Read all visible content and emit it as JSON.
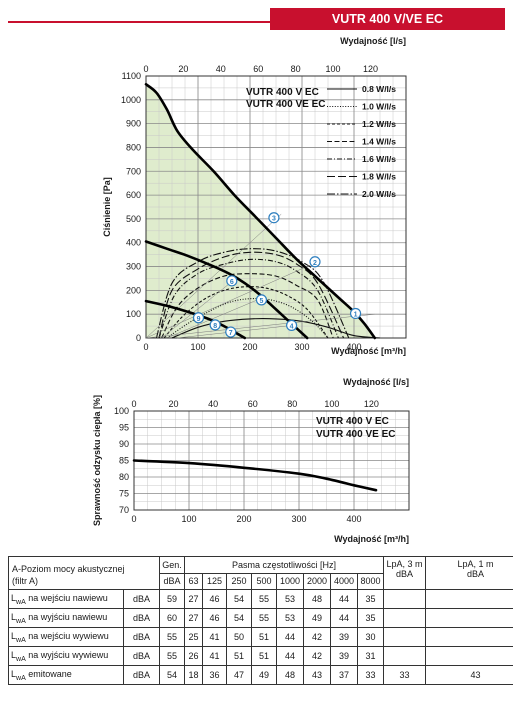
{
  "header": {
    "model": "VUTR 400 V/VE EC"
  },
  "chart_data": [
    {
      "type": "line",
      "x_unit": "m3/h",
      "xlabel": "Wydajność [m³/h]",
      "x2label": "Wydajność [l/s]",
      "ylabel": "Ciśnienie [Pa]",
      "xlim": [
        0,
        500
      ],
      "ylim": [
        0,
        1100
      ],
      "x2lim": [
        0,
        139
      ],
      "xticks": [
        0,
        100,
        200,
        300,
        400
      ],
      "yticks": [
        0,
        100,
        200,
        300,
        400,
        500,
        600,
        700,
        800,
        900,
        1000,
        1100
      ],
      "x2ticks": [
        0,
        20,
        40,
        60,
        80,
        100,
        120
      ],
      "grid": true,
      "model_labels": [
        "VUTR 400 V EC",
        "VUTR 400 VE EC"
      ],
      "fan_curves": [
        {
          "x": [
            0,
            20,
            40,
            60,
            90,
            130,
            170,
            210,
            250,
            290,
            330,
            370,
            400,
            420,
            440
          ],
          "y": [
            1065,
            1030,
            960,
            870,
            790,
            700,
            600,
            510,
            420,
            330,
            250,
            170,
            110,
            60,
            0
          ]
        },
        {
          "x": [
            0,
            40,
            80,
            120,
            160,
            190,
            220,
            250,
            280,
            310
          ],
          "y": [
            405,
            375,
            345,
            310,
            270,
            230,
            180,
            120,
            60,
            0
          ]
        },
        {
          "x": [
            0,
            40,
            80,
            120,
            150,
            170,
            190
          ],
          "y": [
            155,
            135,
            110,
            80,
            50,
            25,
            0
          ]
        }
      ],
      "system_curves": [
        {
          "name": "0.8 W/l/s",
          "style": "solid",
          "x": [
            50,
            100,
            150,
            200,
            250,
            300,
            350,
            400,
            450
          ],
          "y": [
            0,
            45,
            70,
            80,
            80,
            70,
            45,
            10,
            0
          ]
        },
        {
          "name": "1.0 W/l/s",
          "style": "dotted",
          "x": [
            40,
            80,
            120,
            160,
            200,
            240,
            280,
            320,
            350
          ],
          "y": [
            0,
            60,
            110,
            150,
            165,
            160,
            130,
            70,
            0
          ]
        },
        {
          "name": "1.2 W/l/s",
          "style": "short-dash",
          "x": [
            35,
            70,
            110,
            150,
            190,
            230,
            270,
            310,
            350
          ],
          "y": [
            0,
            90,
            160,
            200,
            215,
            210,
            180,
            120,
            0
          ]
        },
        {
          "name": "1.4 W/l/s",
          "style": "dash",
          "x": [
            30,
            60,
            100,
            150,
            200,
            250,
            290,
            330,
            360
          ],
          "y": [
            0,
            130,
            210,
            260,
            270,
            260,
            220,
            160,
            0
          ]
        },
        {
          "name": "1.6 W/l/s",
          "style": "dash-dot",
          "x": [
            25,
            55,
            100,
            150,
            200,
            250,
            290,
            330,
            370
          ],
          "y": [
            0,
            180,
            270,
            310,
            330,
            320,
            280,
            200,
            0
          ]
        },
        {
          "name": "1.8 W/l/s",
          "style": "long-dash",
          "x": [
            25,
            50,
            100,
            150,
            200,
            250,
            290,
            330,
            380
          ],
          "y": [
            0,
            200,
            290,
            340,
            360,
            350,
            310,
            230,
            0
          ]
        },
        {
          "name": "2.0 W/l/s",
          "style": "long-dash-dot",
          "x": [
            20,
            50,
            100,
            150,
            200,
            250,
            300,
            340,
            390
          ],
          "y": [
            0,
            230,
            320,
            360,
            375,
            365,
            320,
            240,
            0
          ]
        }
      ],
      "operating_points": [
        {
          "label": "1",
          "x": 403,
          "y": 103
        },
        {
          "label": "2",
          "x": 325,
          "y": 320
        },
        {
          "label": "3",
          "x": 246,
          "y": 505
        },
        {
          "label": "4",
          "x": 280,
          "y": 53
        },
        {
          "label": "5",
          "x": 222,
          "y": 160
        },
        {
          "label": "6",
          "x": 165,
          "y": 240
        },
        {
          "label": "7",
          "x": 163,
          "y": 25
        },
        {
          "label": "8",
          "x": 133,
          "y": 55
        },
        {
          "label": "9",
          "x": 101,
          "y": 85
        }
      ]
    },
    {
      "type": "line",
      "xlabel": "Wydajność [m³/h]",
      "x2label": "Wydajność [l/s]",
      "ylabel": "Sprawność odzysku ciepła [%]",
      "xlim": [
        0,
        500
      ],
      "ylim": [
        70,
        100
      ],
      "x2lim": [
        0,
        139
      ],
      "xticks": [
        0,
        100,
        200,
        300,
        400
      ],
      "yticks": [
        70,
        75,
        80,
        85,
        90,
        95,
        100
      ],
      "x2ticks": [
        0,
        20,
        40,
        60,
        80,
        100,
        120
      ],
      "grid": true,
      "model_labels": [
        "VUTR 400 V EC",
        "VUTR 400 VE EC"
      ],
      "series": [
        {
          "x": [
            0,
            100,
            200,
            300,
            350,
            400,
            440
          ],
          "y": [
            85,
            84.2,
            82.8,
            81,
            79.5,
            77.5,
            76
          ]
        }
      ]
    }
  ],
  "table": {
    "title_line1": "A-Poziom mocy akustycznej",
    "title_line2": "(filtr A)",
    "gen_label": "Gen.",
    "bands_label": "Pasma częstotliwości [Hz]",
    "lpa3": "LpA, 3 m",
    "lpa1": "LpA, 1 m",
    "unit": "dBA",
    "bands": [
      "63",
      "125",
      "250",
      "500",
      "1000",
      "2000",
      "4000",
      "8000"
    ],
    "rows": [
      {
        "sym": "L",
        "sub": "wA",
        "text": " na wejściu nawiewu",
        "unit": "dBA",
        "gen": "59",
        "vals": [
          "27",
          "46",
          "54",
          "55",
          "53",
          "48",
          "44",
          "35"
        ],
        "lpa3": "",
        "lpa1": ""
      },
      {
        "sym": "L",
        "sub": "wA",
        "text": " na wyjściu nawiewu",
        "unit": "dBA",
        "gen": "60",
        "vals": [
          "27",
          "46",
          "54",
          "55",
          "53",
          "49",
          "44",
          "35"
        ],
        "lpa3": "",
        "lpa1": ""
      },
      {
        "sym": "L",
        "sub": "wA",
        "text": " na wejściu wywiewu",
        "unit": "dBA",
        "gen": "55",
        "vals": [
          "25",
          "41",
          "50",
          "51",
          "44",
          "42",
          "39",
          "30"
        ],
        "lpa3": "",
        "lpa1": ""
      },
      {
        "sym": "L",
        "sub": "wA",
        "text": " na wyjściu wywiewu",
        "unit": "dBA",
        "gen": "55",
        "vals": [
          "26",
          "41",
          "51",
          "51",
          "44",
          "42",
          "39",
          "31"
        ],
        "lpa3": "",
        "lpa1": ""
      },
      {
        "sym": "L",
        "sub": "wA",
        "text": " emitowane",
        "unit": "dBA",
        "gen": "54",
        "vals": [
          "18",
          "36",
          "47",
          "49",
          "48",
          "43",
          "37",
          "33"
        ],
        "lpa3": "33",
        "lpa1": "43"
      }
    ]
  }
}
